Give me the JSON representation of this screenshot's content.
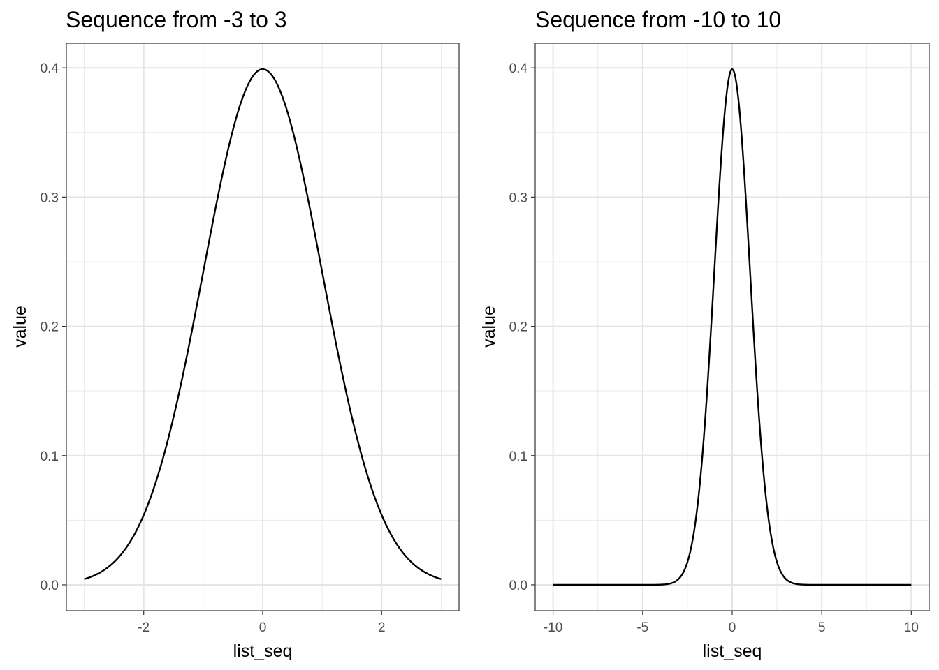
{
  "chart_data": [
    {
      "type": "line",
      "title": "Sequence from -3 to 3",
      "xlabel": "list_seq",
      "ylabel": "value",
      "xlim": [
        -3,
        3
      ],
      "ylim": [
        0,
        0.4
      ],
      "x_ticks": [
        -2,
        0,
        2
      ],
      "x_tick_labels": [
        "-2",
        "0",
        "2"
      ],
      "y_ticks": [
        0,
        0.1,
        0.2,
        0.3,
        0.4
      ],
      "y_tick_labels": [
        "0.0",
        "0.1",
        "0.2",
        "0.3",
        "0.4"
      ],
      "grid": true,
      "legend": "none",
      "series": [
        {
          "color": "#000000",
          "x": [
            -3.0,
            -2.75,
            -2.5,
            -2.25,
            -2.0,
            -1.75,
            -1.5,
            -1.25,
            -1.0,
            -0.75,
            -0.5,
            -0.25,
            0.0,
            0.25,
            0.5,
            0.75,
            1.0,
            1.25,
            1.5,
            1.75,
            2.0,
            2.25,
            2.5,
            2.75,
            3.0
          ],
          "y": [
            0.0044,
            0.0091,
            0.0175,
            0.0317,
            0.054,
            0.0863,
            0.1295,
            0.1826,
            0.242,
            0.3011,
            0.3521,
            0.3867,
            0.3989,
            0.3867,
            0.3521,
            0.3011,
            0.242,
            0.1826,
            0.1295,
            0.0863,
            0.054,
            0.0317,
            0.0175,
            0.0091,
            0.0044
          ]
        }
      ]
    },
    {
      "type": "line",
      "title": "Sequence from -10 to 10",
      "xlabel": "list_seq",
      "ylabel": "value",
      "xlim": [
        -10,
        10
      ],
      "ylim": [
        0,
        0.4
      ],
      "x_ticks": [
        -10,
        -5,
        0,
        5,
        10
      ],
      "x_tick_labels": [
        "-10",
        "-5",
        "0",
        "5",
        "10"
      ],
      "y_ticks": [
        0,
        0.1,
        0.2,
        0.3,
        0.4
      ],
      "y_tick_labels": [
        "0.0",
        "0.1",
        "0.2",
        "0.3",
        "0.4"
      ],
      "grid": true,
      "legend": "none",
      "series": [
        {
          "color": "#000000",
          "x": [
            -10.0,
            -6.0,
            -5.0,
            -4.5,
            -4.0,
            -3.75,
            -3.5,
            -3.25,
            -3.0,
            -2.75,
            -2.5,
            -2.25,
            -2.0,
            -1.75,
            -1.5,
            -1.25,
            -1.0,
            -0.75,
            -0.5,
            -0.25,
            0.0,
            0.25,
            0.5,
            0.75,
            1.0,
            1.25,
            1.5,
            1.75,
            2.0,
            2.25,
            2.5,
            2.75,
            3.0,
            3.25,
            3.5,
            3.75,
            4.0,
            4.5,
            5.0,
            6.0,
            10.0
          ],
          "y": [
            0.0,
            0.0,
            0.0,
            0.0,
            0.0001,
            0.0004,
            0.0009,
            0.002,
            0.0044,
            0.0091,
            0.0175,
            0.0317,
            0.054,
            0.0863,
            0.1295,
            0.1826,
            0.242,
            0.3011,
            0.3521,
            0.3867,
            0.3989,
            0.3867,
            0.3521,
            0.3011,
            0.242,
            0.1826,
            0.1295,
            0.0863,
            0.054,
            0.0317,
            0.0175,
            0.0091,
            0.0044,
            0.002,
            0.0009,
            0.0004,
            0.0001,
            0.0,
            0.0,
            0.0,
            0.0
          ]
        }
      ]
    }
  ]
}
